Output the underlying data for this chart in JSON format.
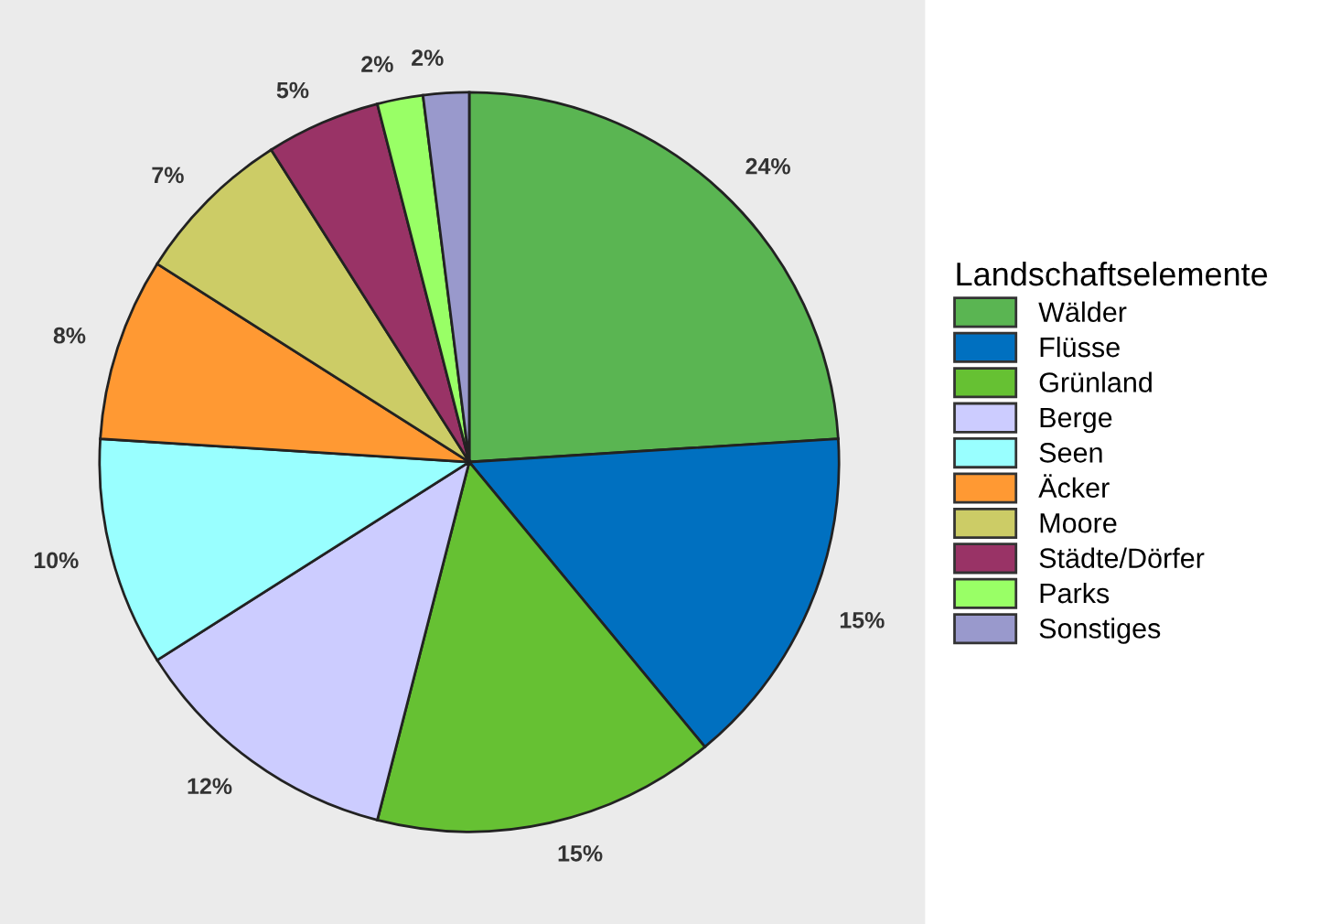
{
  "chart_data": {
    "type": "pie",
    "legend_title": "Landschaftselemente",
    "legend": "right",
    "categories": [
      "Wälder",
      "Flüsse",
      "Grünland",
      "Berge",
      "Seen",
      "Äcker",
      "Moore",
      "Städte/Dörfer",
      "Parks",
      "Sonstiges"
    ],
    "values": [
      24,
      15,
      15,
      12,
      10,
      8,
      7,
      5,
      2,
      2
    ],
    "value_labels": [
      "24%",
      "15%",
      "15%",
      "12%",
      "10%",
      "8%",
      "7%",
      "5%",
      "2%",
      "2%"
    ],
    "colors": [
      "#5ab552",
      "#0070c0",
      "#66c133",
      "#ccccff",
      "#99ffff",
      "#ff9933",
      "#cccc66",
      "#993366",
      "#99ff66",
      "#9999cc"
    ]
  }
}
